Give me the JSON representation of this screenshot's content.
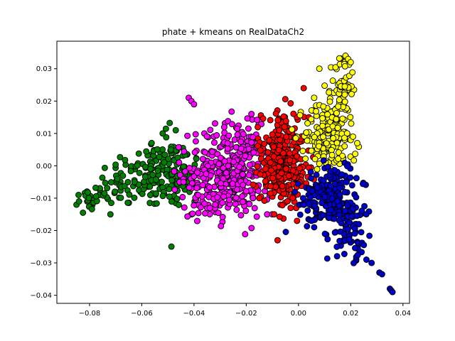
{
  "chart_data": {
    "type": "scatter",
    "title": "phate + kmeans on RealDataCh2",
    "xlabel": "",
    "ylabel": "",
    "xlim": [
      -0.0925,
      0.0425
    ],
    "ylim": [
      -0.0425,
      0.0385
    ],
    "x_ticks": [
      -0.08,
      -0.06,
      -0.04,
      -0.02,
      0.0,
      0.02,
      0.04
    ],
    "x_tick_labels": [
      "−0.08",
      "−0.06",
      "−0.04",
      "−0.02",
      "0.00",
      "0.02",
      "0.04"
    ],
    "y_ticks": [
      -0.04,
      -0.03,
      -0.02,
      -0.01,
      0.0,
      0.01,
      0.02,
      0.03
    ],
    "y_tick_labels": [
      "−0.04",
      "−0.03",
      "−0.02",
      "−0.01",
      "0.00",
      "0.01",
      "0.02",
      "0.03"
    ],
    "grid": false,
    "legend": "none",
    "marker_edge_color": "#000000",
    "series": [
      {
        "color": "#008000",
        "clusters": [
          {
            "x": -0.08,
            "y": -0.01,
            "sx": 0.003,
            "sy": 0.002,
            "n": 22
          },
          {
            "x": -0.074,
            "y": -0.008,
            "sx": 0.002,
            "sy": 0.003,
            "n": 8
          },
          {
            "x": -0.066,
            "y": -0.005,
            "sx": 0.003,
            "sy": 0.004,
            "n": 30
          },
          {
            "x": -0.058,
            "y": -0.003,
            "sx": 0.004,
            "sy": 0.005,
            "n": 55
          },
          {
            "x": -0.05,
            "y": -0.002,
            "sx": 0.004,
            "sy": 0.0055,
            "n": 60
          },
          {
            "x": -0.044,
            "y": -0.004,
            "sx": 0.003,
            "sy": 0.005,
            "n": 40
          },
          {
            "x": -0.052,
            "y": 0.006,
            "sx": 0.003,
            "sy": 0.003,
            "n": 14
          }
        ],
        "points": [
          [
            -0.085,
            -0.012
          ],
          [
            -0.084,
            -0.011
          ],
          [
            -0.0825,
            -0.0145
          ],
          [
            -0.072,
            -0.015
          ],
          [
            -0.041,
            -0.015
          ],
          [
            -0.047,
            0.011
          ],
          [
            -0.052,
            0.01
          ]
        ]
      },
      {
        "color": "#ff00ff",
        "clusters": [
          {
            "x": -0.035,
            "y": -0.002,
            "sx": 0.005,
            "sy": 0.0065,
            "n": 110
          },
          {
            "x": -0.025,
            "y": -0.001,
            "sx": 0.005,
            "sy": 0.007,
            "n": 150
          },
          {
            "x": -0.018,
            "y": 0.0,
            "sx": 0.003,
            "sy": 0.007,
            "n": 70
          },
          {
            "x": -0.03,
            "y": -0.01,
            "sx": 0.006,
            "sy": 0.003,
            "n": 50
          }
        ],
        "points": [
          [
            -0.042,
            0.021
          ],
          [
            -0.041,
            0.02
          ],
          [
            -0.04,
            0.019
          ],
          [
            -0.044,
            -0.005
          ],
          [
            -0.012,
            -0.015
          ],
          [
            -0.01,
            -0.015
          ],
          [
            -0.018,
            0.016
          ]
        ]
      },
      {
        "color": "#ff0000",
        "clusters": [
          {
            "x": -0.006,
            "y": 0.004,
            "sx": 0.004,
            "sy": 0.007,
            "n": 150
          },
          {
            "x": -0.003,
            "y": -0.004,
            "sx": 0.004,
            "sy": 0.005,
            "n": 80
          },
          {
            "x": -0.01,
            "y": 0.0,
            "sx": 0.003,
            "sy": 0.006,
            "n": 60
          }
        ],
        "points": [
          [
            0.002,
            0.024
          ],
          [
            -0.003,
            -0.013
          ],
          [
            -0.015,
            -0.01
          ],
          [
            0.004,
            0.015
          ]
        ]
      },
      {
        "color": "#ffff00",
        "clusters": [
          {
            "x": 0.01,
            "y": 0.01,
            "sx": 0.004,
            "sy": 0.005,
            "n": 110
          },
          {
            "x": 0.016,
            "y": 0.018,
            "sx": 0.003,
            "sy": 0.006,
            "n": 60
          },
          {
            "x": 0.018,
            "y": 0.027,
            "sx": 0.002,
            "sy": 0.004,
            "n": 25
          },
          {
            "x": 0.015,
            "y": 0.005,
            "sx": 0.005,
            "sy": 0.003,
            "n": 45
          }
        ],
        "points": [
          [
            0.018,
            0.034
          ],
          [
            0.019,
            0.033
          ],
          [
            0.02,
            0.032
          ],
          [
            0.008,
            0.03
          ],
          [
            0.006,
            0.021
          ],
          [
            0.0225,
            0.007
          ]
        ]
      },
      {
        "color": "#0000cc",
        "clusters": [
          {
            "x": 0.012,
            "y": -0.007,
            "sx": 0.004,
            "sy": 0.004,
            "n": 110
          },
          {
            "x": 0.008,
            "y": -0.012,
            "sx": 0.004,
            "sy": 0.004,
            "n": 50
          },
          {
            "x": 0.018,
            "y": -0.014,
            "sx": 0.004,
            "sy": 0.006,
            "n": 80
          },
          {
            "x": 0.022,
            "y": -0.023,
            "sx": 0.002,
            "sy": 0.003,
            "n": 25
          }
        ],
        "points": [
          [
            0.026,
            -0.029
          ],
          [
            0.028,
            -0.03
          ],
          [
            0.031,
            -0.033
          ],
          [
            0.032,
            -0.0335
          ],
          [
            0.035,
            -0.038
          ],
          [
            0.0355,
            -0.0385
          ],
          [
            0.036,
            -0.039
          ],
          [
            0.006,
            -0.019
          ],
          [
            0.005,
            -0.017
          ],
          [
            0.002,
            -0.012
          ]
        ]
      }
    ]
  }
}
